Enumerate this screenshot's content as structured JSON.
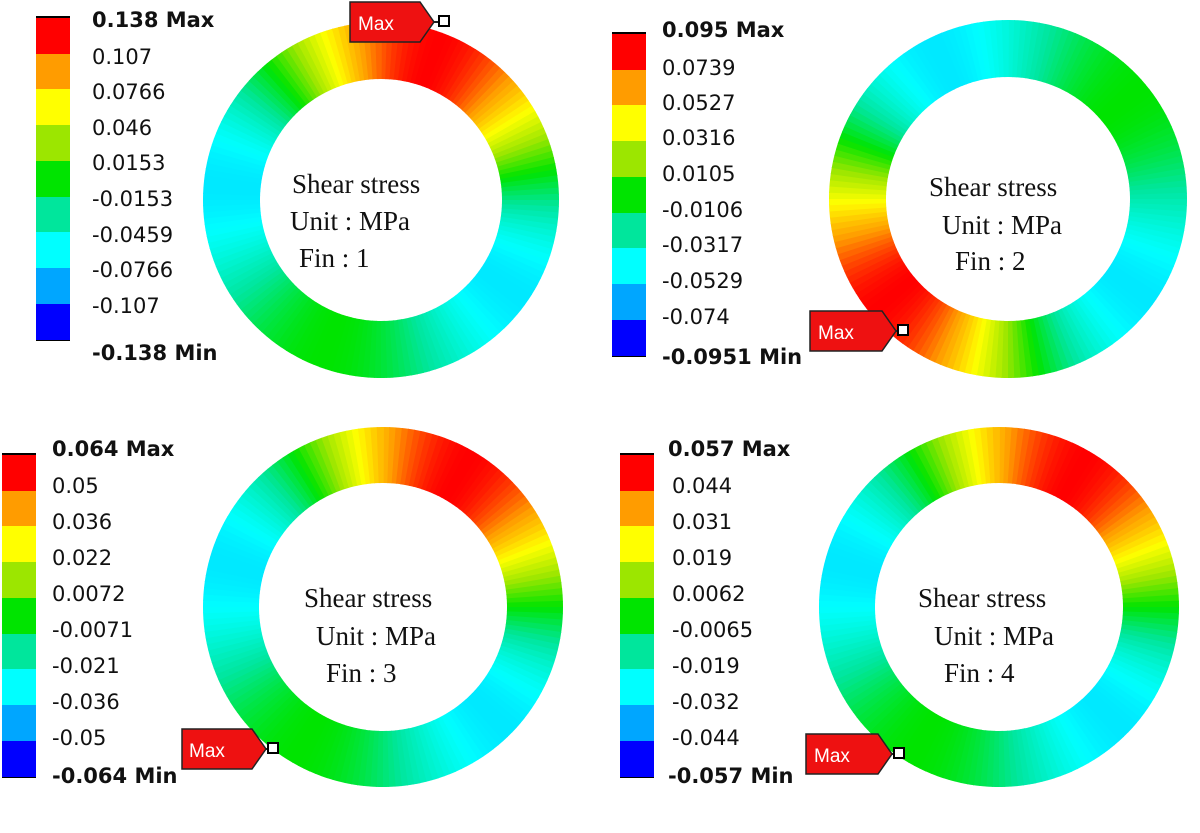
{
  "colorbar": [
    "#ff0000",
    "#ff9c00",
    "#ffff00",
    "#9ce600",
    "#00e400",
    "#00e69c",
    "#00ffff",
    "#00a6ff",
    "#0000ff"
  ],
  "panels": [
    {
      "title": "Shear stress",
      "unit": "Unit : MPa",
      "fin": "Fin : 1",
      "legend_max": "0.138 Max",
      "legend_min": "-0.138 Min",
      "levels": [
        "0.107",
        "0.0766",
        "0.046",
        "0.0153",
        "-0.0153",
        "-0.0459",
        "-0.0766",
        "-0.107"
      ],
      "max_label": "Max",
      "max_position": "top-right",
      "peak_direction_deg": 20
    },
    {
      "title": "Shear stress",
      "unit": "Unit : MPa",
      "fin": "Fin : 2",
      "legend_max": "0.095 Max",
      "legend_min": "-0.0951 Min",
      "levels": [
        "0.0739",
        "0.0527",
        "0.0316",
        "0.0105",
        "-0.0106",
        "-0.0317",
        "-0.0529",
        "-0.074"
      ],
      "max_label": "Max",
      "max_position": "lower-left",
      "peak_direction_deg": 230
    },
    {
      "title": "Shear stress",
      "unit": "Unit : MPa",
      "fin": "Fin : 3",
      "legend_max": "0.064 Max",
      "legend_min": "-0.064 Min",
      "levels": [
        "0.05",
        "0.036",
        "0.022",
        "0.0072",
        "-0.0071",
        "-0.021",
        "-0.036",
        "-0.05"
      ],
      "max_label": "Max",
      "max_position": "lower-left",
      "peak_direction_deg": 30
    },
    {
      "title": "Shear stress",
      "unit": "Unit : MPa",
      "fin": "Fin : 4",
      "legend_max": "0.057 Max",
      "legend_min": "-0.057 Min",
      "levels": [
        "0.044",
        "0.031",
        "0.019",
        "0.0062",
        "-0.0065",
        "-0.019",
        "-0.032",
        "-0.044"
      ],
      "max_label": "Max",
      "max_position": "lower-left",
      "peak_direction_deg": 30
    }
  ]
}
